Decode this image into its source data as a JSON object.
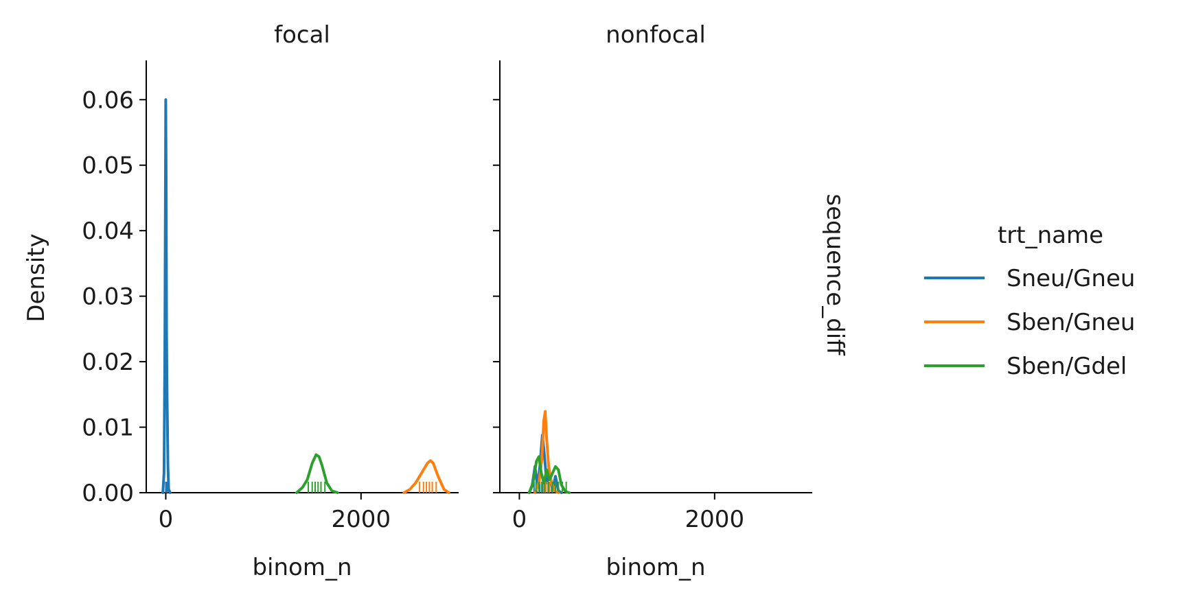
{
  "chart_data": {
    "type": "line",
    "kind": "kde density with rug",
    "facet_column": "focal / nonfocal",
    "row_label": "sequence_diff",
    "ylabel": "Density",
    "xlabel": "binom_n",
    "xlim": [
      -200,
      3000
    ],
    "ylim": [
      0,
      0.066
    ],
    "xticks": [
      0,
      2000
    ],
    "xtick_labels": [
      "0",
      "2000"
    ],
    "yticks": [
      0.0,
      0.01,
      0.02,
      0.03,
      0.04,
      0.05,
      0.06
    ],
    "ytick_labels": [
      "0.00",
      "0.01",
      "0.02",
      "0.03",
      "0.04",
      "0.05",
      "0.06"
    ],
    "legend": {
      "title": "trt_name",
      "placement": "right",
      "entries": [
        {
          "name": "Sneu/Gneu",
          "color": "#1f77b4"
        },
        {
          "name": "Sben/Gneu",
          "color": "#ff7f0e"
        },
        {
          "name": "Sben/Gdel",
          "color": "#2ca02c"
        }
      ]
    },
    "panels": [
      {
        "title": "focal",
        "series": [
          {
            "name": "Sneu/Gneu",
            "color": "#1f77b4",
            "x": [
              -30,
              -18,
              -10,
              -4,
              0,
              4,
              8,
              12,
              16,
              22,
              30,
              45
            ],
            "y": [
              0,
              0.003,
              0.02,
              0.045,
              0.06,
              0.048,
              0.025,
              0.017,
              0.012,
              0.004,
              0.0005,
              0
            ],
            "rug": [
              0,
              3,
              6,
              10,
              14
            ]
          },
          {
            "name": "Sben/Gneu",
            "color": "#ff7f0e",
            "x": [
              2440,
              2500,
              2560,
              2620,
              2680,
              2710,
              2740,
              2790,
              2850,
              2900
            ],
            "y": [
              0,
              0.0005,
              0.0015,
              0.003,
              0.0045,
              0.0049,
              0.0045,
              0.0025,
              0.0005,
              0
            ],
            "rug": [
              2600,
              2640,
              2670,
              2700,
              2730,
              2770
            ]
          },
          {
            "name": "Sben/Gdel",
            "color": "#2ca02c",
            "x": [
              1340,
              1400,
              1450,
              1500,
              1540,
              1570,
              1600,
              1650,
              1700,
              1760
            ],
            "y": [
              0,
              0.0008,
              0.002,
              0.0045,
              0.0058,
              0.0055,
              0.0042,
              0.0015,
              0.0003,
              0
            ],
            "rug": [
              1460,
              1500,
              1530,
              1560,
              1590,
              1630
            ]
          }
        ]
      },
      {
        "title": "nonfocal",
        "series": [
          {
            "name": "Sneu/Gneu",
            "color": "#1f77b4",
            "x": [
              100,
              130,
              160,
              185,
              210,
              235,
              255,
              280,
              310,
              340,
              370,
              400,
              430
            ],
            "y": [
              0,
              0.001,
              0.004,
              0.001,
              0.004,
              0.0088,
              0.006,
              0.0015,
              0.003,
              0.0005,
              0.0025,
              0.0003,
              0
            ],
            "rug": [
              150,
              180,
              210,
              240,
              260,
              290,
              330,
              370
            ]
          },
          {
            "name": "Sben/Gneu",
            "color": "#ff7f0e",
            "x": [
              160,
              200,
              230,
              250,
              265,
              280,
              300,
              330,
              360,
              400
            ],
            "y": [
              0,
              0.0015,
              0.005,
              0.011,
              0.0124,
              0.008,
              0.004,
              0.0015,
              0.0003,
              0
            ],
            "rug": [
              230,
              250,
              270,
              290,
              310
            ]
          },
          {
            "name": "Sben/Gdel",
            "color": "#2ca02c",
            "x": [
              100,
              140,
              175,
              200,
              225,
              250,
              280,
              310,
              340,
              370,
              400,
              430,
              470,
              510
            ],
            "y": [
              0,
              0.0015,
              0.0048,
              0.0055,
              0.003,
              0.0015,
              0.0035,
              0.002,
              0.003,
              0.004,
              0.0035,
              0.0012,
              0.0002,
              0
            ],
            "rug": [
              170,
              200,
              230,
              260,
              300,
              340,
              370,
              400,
              440,
              480
            ]
          }
        ]
      }
    ]
  }
}
